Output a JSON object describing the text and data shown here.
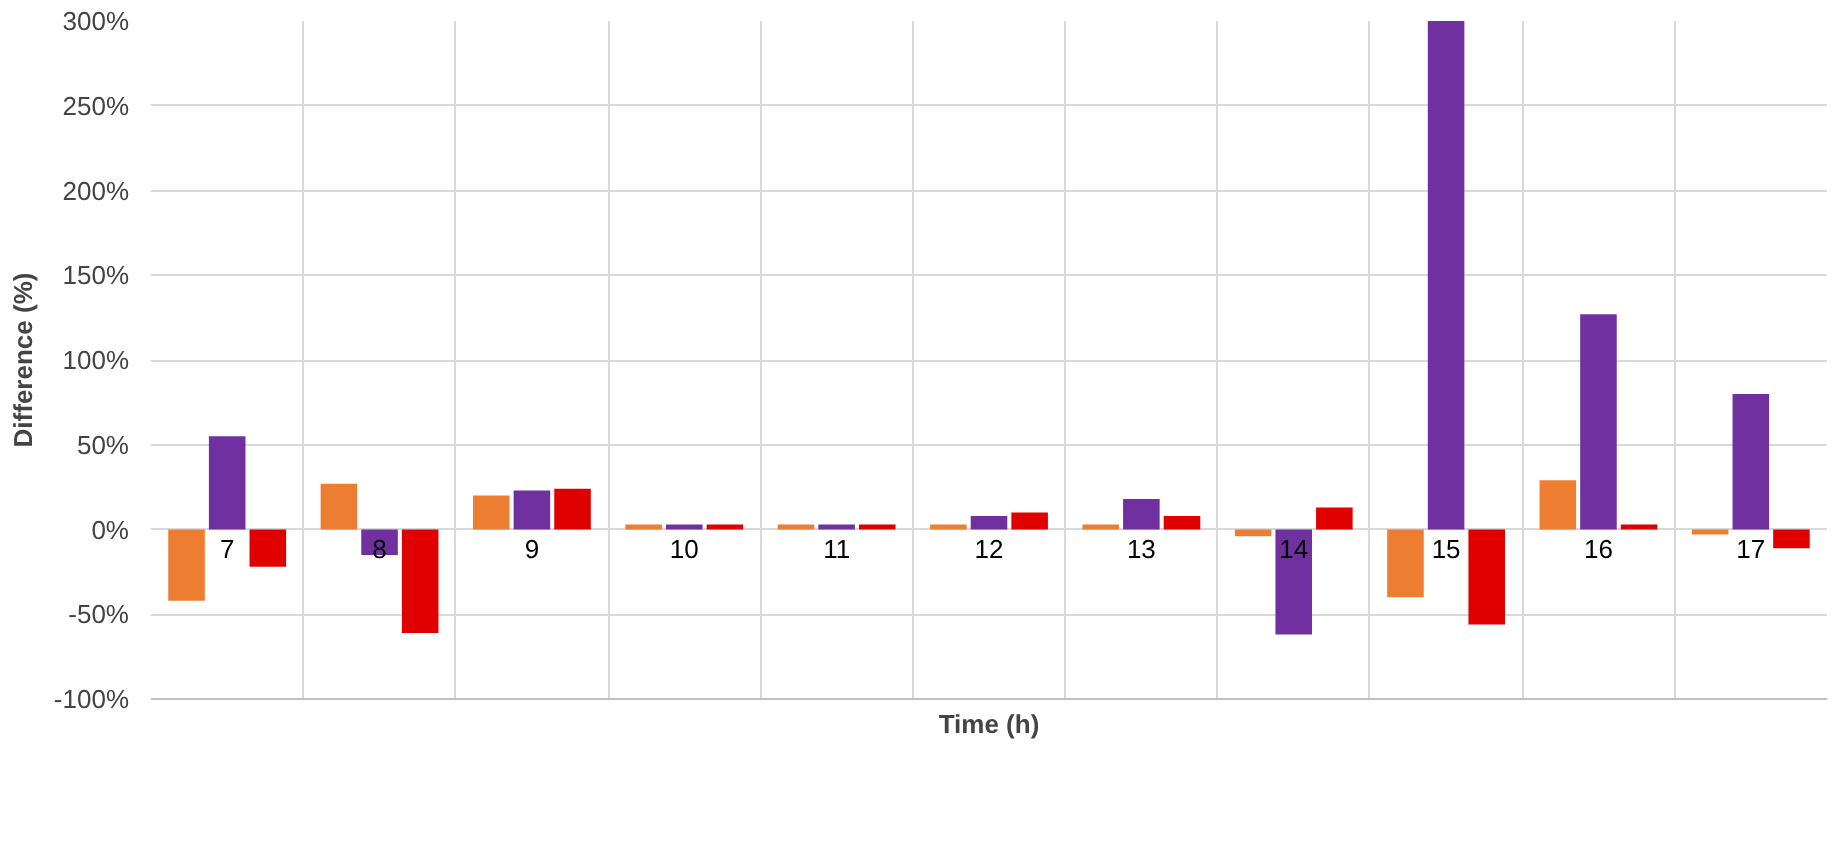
{
  "chart_data": {
    "type": "bar",
    "xlabel": "Time (h)",
    "ylabel": "Difference (%)",
    "categories": [
      "7",
      "8",
      "9",
      "10",
      "11",
      "12",
      "13",
      "14",
      "15",
      "16",
      "17"
    ],
    "series": [
      {
        "color": "#ed7d31",
        "values": [
          -42,
          27,
          20,
          3,
          3,
          3,
          3,
          -4,
          -40,
          29,
          -3
        ]
      },
      {
        "color": "#7030a0",
        "values": [
          55,
          -15,
          23,
          3,
          3,
          8,
          18,
          -62,
          300,
          127,
          80
        ]
      },
      {
        "color": "#e00000",
        "values": [
          -22,
          -61,
          24,
          3,
          3,
          10,
          8,
          13,
          -56,
          3,
          -11
        ]
      }
    ],
    "ylim": [
      -100,
      300
    ],
    "yticks": [
      {
        "value": -100,
        "label": "-100%"
      },
      {
        "value": -50,
        "label": "-50%"
      },
      {
        "value": 0,
        "label": "0%"
      },
      {
        "value": 50,
        "label": "50%"
      },
      {
        "value": 100,
        "label": "100%"
      },
      {
        "value": 150,
        "label": "150%"
      },
      {
        "value": 200,
        "label": "200%"
      },
      {
        "value": 250,
        "label": "250%"
      },
      {
        "value": 300,
        "label": "300%"
      }
    ],
    "grid": true
  }
}
